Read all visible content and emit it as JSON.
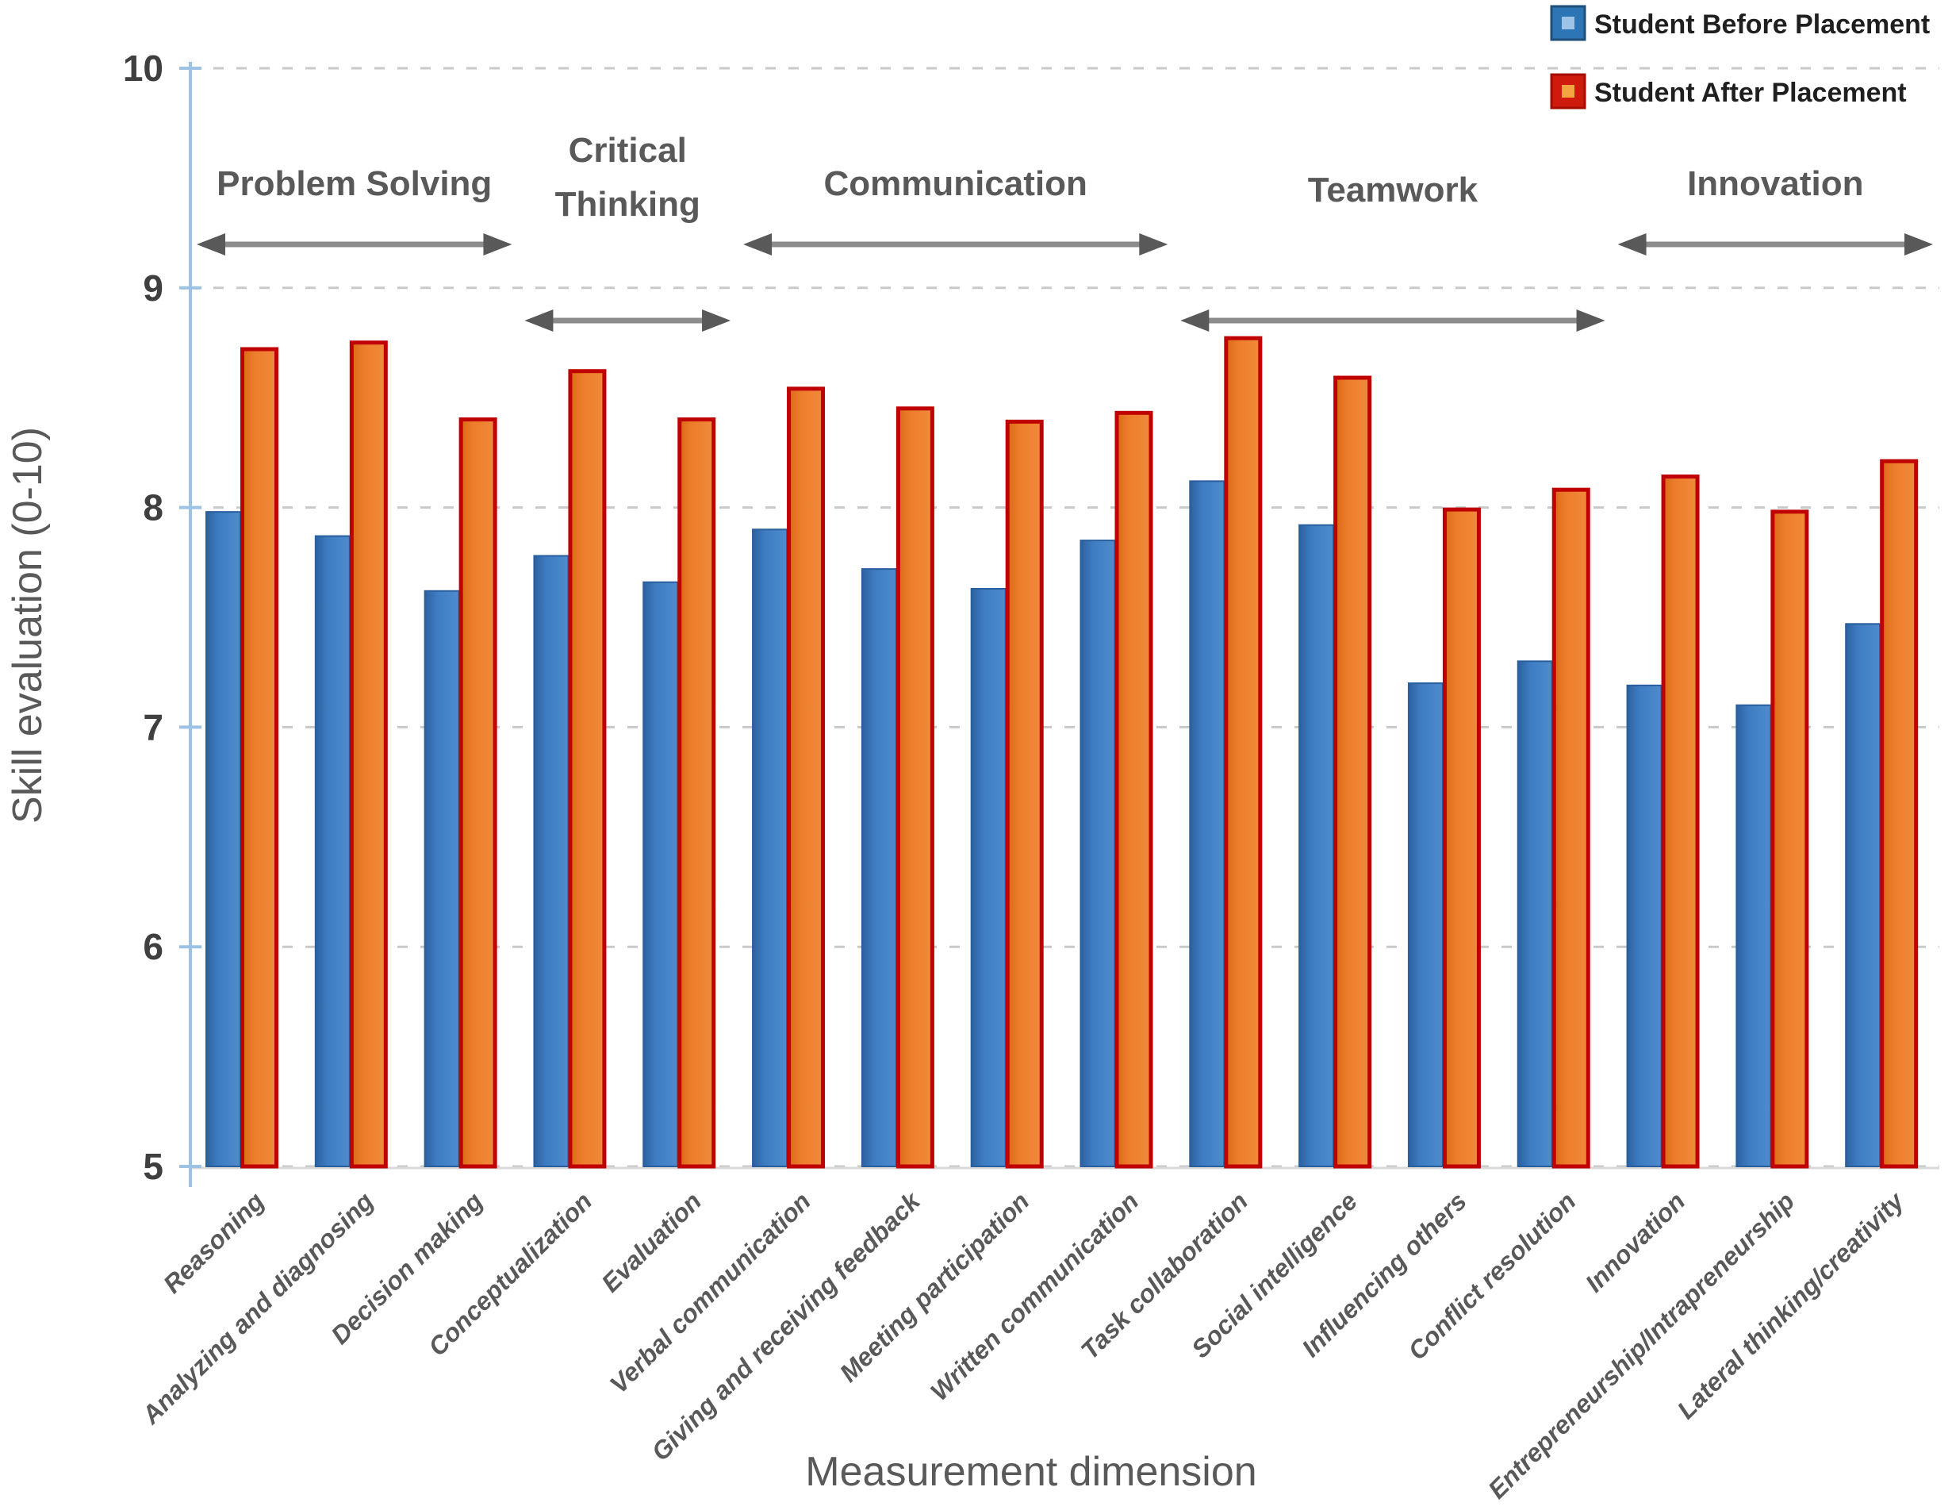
{
  "chart_data": {
    "type": "bar",
    "title": "",
    "xlabel": "Measurement dimension",
    "ylabel": "Skill evaluation (0-10)",
    "ylim": [
      5,
      10
    ],
    "yticks": [
      5,
      6,
      7,
      8,
      9,
      10
    ],
    "grid": "dashed-horizontal",
    "legend_position": "top-right",
    "categories": [
      "Reasoning",
      "Analyzing and diagnosing",
      "Decision making",
      "Conceptualization",
      "Evaluation",
      "Verbal communication",
      "Giving and receiving feedback",
      "Meeting participation",
      "Written communication",
      "Task collaboration",
      "Social intelligence",
      "Influencing others",
      "Conflict resolution",
      "Innovation",
      "Entrepreneurship/Intrapreneurship",
      "Lateral thinking/creativity"
    ],
    "series": [
      {
        "name": "Student Before Placement",
        "values": [
          7.98,
          7.87,
          7.62,
          7.78,
          7.66,
          7.9,
          7.72,
          7.63,
          7.85,
          8.12,
          7.92,
          7.2,
          7.3,
          7.19,
          7.1,
          7.47
        ]
      },
      {
        "name": "Student After Placement",
        "values": [
          8.73,
          8.76,
          8.41,
          8.63,
          8.41,
          8.55,
          8.46,
          8.4,
          8.44,
          8.78,
          8.6,
          8.0,
          8.09,
          8.15,
          7.99,
          8.22
        ]
      }
    ],
    "category_groups": [
      {
        "label_lines": [
          "Problem Solving"
        ],
        "from": 0,
        "to": 2,
        "row": "upper"
      },
      {
        "label_lines": [
          "Critical",
          "Thinking"
        ],
        "from": 3,
        "to": 4,
        "row": "lower"
      },
      {
        "label_lines": [
          "Communication"
        ],
        "from": 5,
        "to": 8,
        "row": "upper"
      },
      {
        "label_lines": [
          "Teamwork"
        ],
        "from": 9,
        "to": 12,
        "row": "lower"
      },
      {
        "label_lines": [
          "Innovation"
        ],
        "from": 13,
        "to": 15,
        "row": "upper"
      }
    ]
  },
  "legend": {
    "items": [
      {
        "label": "Student Before Placement",
        "swatch": "blue-square-icon"
      },
      {
        "label": "Student After Placement",
        "swatch": "red-square-icon"
      }
    ]
  },
  "colors": {
    "before_fill": "#3E7CC2",
    "before_fill_dark": "#2C61A0",
    "before_fill_light": "#4E8CCE",
    "before_stroke": "#2A5F9E",
    "after_fill": "#ED7D2B",
    "after_fill_dark": "#D96A15",
    "after_fill_light": "#F08A3C",
    "after_stroke": "#C00000",
    "axis_line": "#9CC2E5",
    "gridline": "#C9C9C9",
    "baseline": "#D9D9D9",
    "arrow_line": "#8C8C8C",
    "arrow_head": "#595959",
    "legend_before_outer": "#2E75B6",
    "legend_before_border": "#1F4E79",
    "legend_before_inner": "#9DC3E6",
    "legend_after_outer": "#CE1B0E",
    "legend_after_border": "#A50D00",
    "legend_after_inner": "#F4A540"
  }
}
